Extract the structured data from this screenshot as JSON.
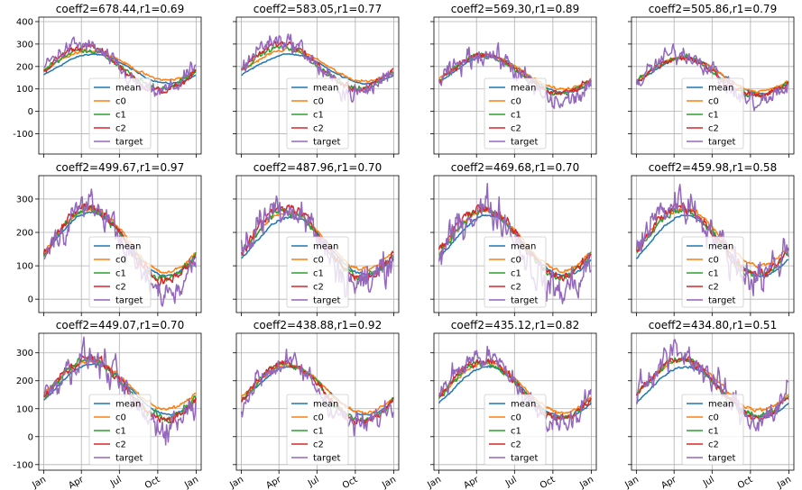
{
  "figure": {
    "x_ticks": [
      "Jan",
      "Apr",
      "Jul",
      "Oct",
      "Jan"
    ],
    "y_ticks_row1": [
      -100,
      0,
      100,
      200,
      300,
      400
    ],
    "y_ticks_row2": [
      0,
      100,
      200,
      300
    ],
    "y_ticks_row3": [
      -100,
      0,
      100,
      200,
      300
    ],
    "series_colors": {
      "mean": "#1f77b4",
      "c0": "#ff7f0e",
      "c1": "#2ca02c",
      "c2": "#d62728",
      "target": "#9467bd"
    },
    "legend": [
      "mean",
      "c0",
      "c1",
      "c2",
      "target"
    ]
  },
  "chart_data": [
    {
      "type": "line",
      "title": "coeff2=678.44,r1=0.69",
      "ylim": [
        -190,
        420
      ],
      "grid": true,
      "legend_position": "lower center",
      "series": [
        {
          "name": "mean",
          "center": 190,
          "amp": 65,
          "phase": -100,
          "noise": 3
        },
        {
          "name": "c0",
          "center": 205,
          "amp": 65,
          "phase": -95,
          "noise": 5
        },
        {
          "name": "c1",
          "center": 190,
          "amp": 85,
          "phase": -80,
          "noise": 10
        },
        {
          "name": "c2",
          "center": 190,
          "amp": 100,
          "phase": -80,
          "noise": 12
        },
        {
          "name": "target",
          "center": 190,
          "amp": 105,
          "phase": -70,
          "noise": 30
        }
      ]
    },
    {
      "type": "line",
      "title": "coeff2=583.05,r1=0.77",
      "ylim": [
        -190,
        420
      ],
      "grid": true,
      "legend_position": "lower center",
      "series": [
        {
          "name": "mean",
          "center": 190,
          "amp": 65,
          "phase": -100,
          "noise": 3
        },
        {
          "name": "c0",
          "center": 205,
          "amp": 70,
          "phase": -95,
          "noise": 5
        },
        {
          "name": "c1",
          "center": 195,
          "amp": 90,
          "phase": -80,
          "noise": 10
        },
        {
          "name": "c2",
          "center": 200,
          "amp": 100,
          "phase": -80,
          "noise": 12
        },
        {
          "name": "target",
          "center": 200,
          "amp": 120,
          "phase": -75,
          "noise": 35
        }
      ]
    },
    {
      "type": "line",
      "title": "coeff2=569.30,r1=0.89",
      "ylim": [
        -190,
        420
      ],
      "grid": true,
      "legend_position": "lower center",
      "series": [
        {
          "name": "mean",
          "center": 165,
          "amp": 80,
          "phase": -100,
          "noise": 3
        },
        {
          "name": "c0",
          "center": 175,
          "amp": 75,
          "phase": -95,
          "noise": 5
        },
        {
          "name": "c1",
          "center": 165,
          "amp": 85,
          "phase": -90,
          "noise": 10
        },
        {
          "name": "c2",
          "center": 165,
          "amp": 85,
          "phase": -90,
          "noise": 12
        },
        {
          "name": "target",
          "center": 150,
          "amp": 110,
          "phase": -90,
          "noise": 40
        }
      ]
    },
    {
      "type": "line",
      "title": "coeff2=505.86,r1=0.79",
      "ylim": [
        -190,
        420
      ],
      "grid": true,
      "legend_position": "lower center",
      "series": [
        {
          "name": "mean",
          "center": 160,
          "amp": 80,
          "phase": -100,
          "noise": 3
        },
        {
          "name": "c0",
          "center": 165,
          "amp": 75,
          "phase": -95,
          "noise": 5
        },
        {
          "name": "c1",
          "center": 155,
          "amp": 85,
          "phase": -90,
          "noise": 10
        },
        {
          "name": "c2",
          "center": 155,
          "amp": 85,
          "phase": -90,
          "noise": 12
        },
        {
          "name": "target",
          "center": 150,
          "amp": 110,
          "phase": -90,
          "noise": 35
        }
      ]
    },
    {
      "type": "line",
      "title": "coeff2=499.67,r1=0.97",
      "ylim": [
        -40,
        370
      ],
      "grid": true,
      "legend_position": "lower center",
      "series": [
        {
          "name": "mean",
          "center": 165,
          "amp": 95,
          "phase": -95,
          "noise": 3
        },
        {
          "name": "c0",
          "center": 175,
          "amp": 95,
          "phase": -95,
          "noise": 5
        },
        {
          "name": "c1",
          "center": 165,
          "amp": 105,
          "phase": -90,
          "noise": 10
        },
        {
          "name": "c2",
          "center": 165,
          "amp": 110,
          "phase": -90,
          "noise": 12
        },
        {
          "name": "target",
          "center": 150,
          "amp": 130,
          "phase": -90,
          "noise": 35
        }
      ]
    },
    {
      "type": "line",
      "title": "coeff2=487.96,r1=0.70",
      "ylim": [
        -40,
        370
      ],
      "grid": true,
      "legend_position": "lower center",
      "series": [
        {
          "name": "mean",
          "center": 160,
          "amp": 85,
          "phase": -100,
          "noise": 3
        },
        {
          "name": "c0",
          "center": 175,
          "amp": 85,
          "phase": -95,
          "noise": 5
        },
        {
          "name": "c1",
          "center": 165,
          "amp": 100,
          "phase": -90,
          "noise": 10
        },
        {
          "name": "c2",
          "center": 170,
          "amp": 105,
          "phase": -90,
          "noise": 12
        },
        {
          "name": "target",
          "center": 165,
          "amp": 120,
          "phase": -85,
          "noise": 45
        }
      ]
    },
    {
      "type": "line",
      "title": "coeff2=469.68,r1=0.70",
      "ylim": [
        -40,
        370
      ],
      "grid": true,
      "legend_position": "lower center",
      "series": [
        {
          "name": "mean",
          "center": 160,
          "amp": 90,
          "phase": -100,
          "noise": 3
        },
        {
          "name": "c0",
          "center": 175,
          "amp": 90,
          "phase": -95,
          "noise": 5
        },
        {
          "name": "c1",
          "center": 165,
          "amp": 100,
          "phase": -90,
          "noise": 10
        },
        {
          "name": "c2",
          "center": 170,
          "amp": 105,
          "phase": -90,
          "noise": 12
        },
        {
          "name": "target",
          "center": 150,
          "amp": 125,
          "phase": -90,
          "noise": 45
        }
      ]
    },
    {
      "type": "line",
      "title": "coeff2=459.98,r1=0.58",
      "ylim": [
        -40,
        370
      ],
      "grid": true,
      "legend_position": "lower center",
      "series": [
        {
          "name": "mean",
          "center": 160,
          "amp": 90,
          "phase": -100,
          "noise": 3
        },
        {
          "name": "c0",
          "center": 185,
          "amp": 85,
          "phase": -95,
          "noise": 5
        },
        {
          "name": "c1",
          "center": 170,
          "amp": 100,
          "phase": -90,
          "noise": 10
        },
        {
          "name": "c2",
          "center": 175,
          "amp": 100,
          "phase": -90,
          "noise": 12
        },
        {
          "name": "target",
          "center": 180,
          "amp": 110,
          "phase": -85,
          "noise": 45
        }
      ]
    },
    {
      "type": "line",
      "title": "coeff2=449.07,r1=0.70",
      "ylim": [
        -120,
        370
      ],
      "grid": true,
      "legend_position": "lower center",
      "series": [
        {
          "name": "mean",
          "center": 170,
          "amp": 90,
          "phase": -100,
          "noise": 3
        },
        {
          "name": "c0",
          "center": 185,
          "amp": 85,
          "phase": -95,
          "noise": 5
        },
        {
          "name": "c1",
          "center": 170,
          "amp": 105,
          "phase": -90,
          "noise": 12
        },
        {
          "name": "c2",
          "center": 170,
          "amp": 110,
          "phase": -90,
          "noise": 14
        },
        {
          "name": "target",
          "center": 160,
          "amp": 120,
          "phase": -85,
          "noise": 45
        }
      ]
    },
    {
      "type": "line",
      "title": "coeff2=438.88,r1=0.92",
      "ylim": [
        -120,
        370
      ],
      "grid": true,
      "legend_position": "lower center",
      "series": [
        {
          "name": "mean",
          "center": 165,
          "amp": 85,
          "phase": -100,
          "noise": 3
        },
        {
          "name": "c0",
          "center": 170,
          "amp": 85,
          "phase": -95,
          "noise": 5
        },
        {
          "name": "c1",
          "center": 160,
          "amp": 100,
          "phase": -90,
          "noise": 10
        },
        {
          "name": "c2",
          "center": 160,
          "amp": 105,
          "phase": -90,
          "noise": 12
        },
        {
          "name": "target",
          "center": 150,
          "amp": 110,
          "phase": -85,
          "noise": 35
        }
      ]
    },
    {
      "type": "line",
      "title": "coeff2=435.12,r1=0.82",
      "ylim": [
        -120,
        370
      ],
      "grid": true,
      "legend_position": "lower center",
      "series": [
        {
          "name": "mean",
          "center": 160,
          "amp": 90,
          "phase": -100,
          "noise": 3
        },
        {
          "name": "c0",
          "center": 175,
          "amp": 90,
          "phase": -95,
          "noise": 5
        },
        {
          "name": "c1",
          "center": 165,
          "amp": 100,
          "phase": -90,
          "noise": 10
        },
        {
          "name": "c2",
          "center": 170,
          "amp": 105,
          "phase": -90,
          "noise": 12
        },
        {
          "name": "target",
          "center": 170,
          "amp": 115,
          "phase": -85,
          "noise": 35
        }
      ]
    },
    {
      "type": "line",
      "title": "coeff2=434.80,r1=0.51",
      "ylim": [
        -120,
        370
      ],
      "grid": true,
      "legend_position": "lower center",
      "series": [
        {
          "name": "mean",
          "center": 160,
          "amp": 90,
          "phase": -100,
          "noise": 3
        },
        {
          "name": "c0",
          "center": 185,
          "amp": 90,
          "phase": -95,
          "noise": 5
        },
        {
          "name": "c1",
          "center": 175,
          "amp": 100,
          "phase": -90,
          "noise": 10
        },
        {
          "name": "c2",
          "center": 175,
          "amp": 105,
          "phase": -90,
          "noise": 12
        },
        {
          "name": "target",
          "center": 180,
          "amp": 115,
          "phase": -85,
          "noise": 45
        }
      ]
    }
  ]
}
